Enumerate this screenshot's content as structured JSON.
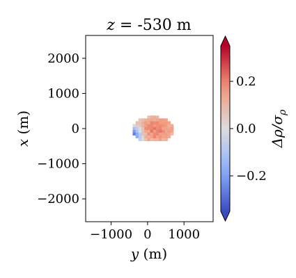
{
  "chart_data": {
    "type": "heatmap",
    "title": "z = -530 m",
    "title_parts": {
      "var": "z",
      "rest": " = -530 m"
    },
    "xlabel": "y (m)",
    "xlabel_parts": {
      "var": "y",
      "rest": " (m)"
    },
    "ylabel": "x (m)",
    "ylabel_parts": {
      "var": "x",
      "rest": " (m)"
    },
    "xlim": [
      -1700,
      1800
    ],
    "ylim": [
      -2650,
      2650
    ],
    "xticks": [
      -1000,
      0,
      1000
    ],
    "xtick_labels": [
      "−1000",
      "0",
      "1000"
    ],
    "yticks": [
      -2000,
      -1000,
      0,
      1000,
      2000
    ],
    "ytick_labels": [
      "−2000",
      "−1000",
      "0",
      "1000",
      "2000"
    ],
    "colorbar": {
      "label": "Δρ/σρ",
      "label_parts": {
        "main": "Δρ/σ",
        "sub": "ρ"
      },
      "colormap": "coolwarm",
      "extend": "both",
      "vmin": -0.35,
      "vmax": 0.35,
      "ticks": [
        -0.2,
        0.0,
        0.2
      ],
      "tick_labels": [
        "−0.2",
        "0.0",
        "0.2"
      ]
    },
    "cell_size": 80,
    "anomaly": {
      "center_y": 150,
      "center_x": -20,
      "radius_y": 600,
      "radius_x": 370,
      "positive_peak": 0.2,
      "negative_peak": -0.3,
      "negative_lobe_y": -520,
      "negative_lobe_x": -160
    },
    "grid": false
  }
}
